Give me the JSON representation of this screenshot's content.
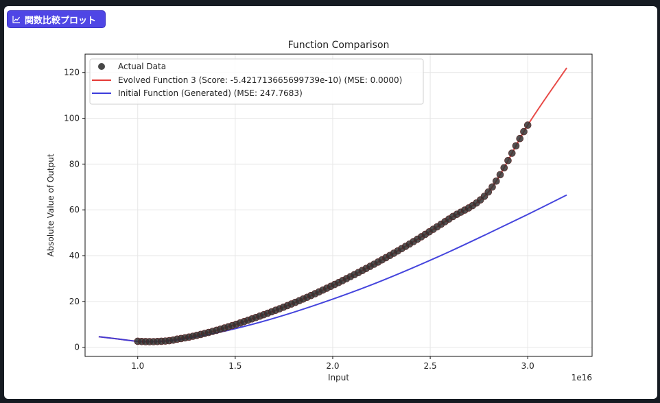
{
  "badge": {
    "label": "関数比較プロット",
    "icon": "chart-line-icon",
    "color": "#4f46e5"
  },
  "chart_data": {
    "type": "line",
    "title": "Function Comparison",
    "xlabel": "Input",
    "ylabel": "Absolute Value of Output",
    "x_offset_label": "1e16",
    "xlim": [
      0.73,
      3.33
    ],
    "ylim": [
      -4,
      128
    ],
    "xticks": [
      1.0,
      1.5,
      2.0,
      2.5,
      3.0
    ],
    "xtick_labels": [
      "1.0",
      "1.5",
      "2.0",
      "2.5",
      "3.0"
    ],
    "yticks": [
      0,
      20,
      40,
      60,
      80,
      100,
      120
    ],
    "ytick_labels": [
      "0",
      "20",
      "40",
      "60",
      "80",
      "100",
      "120"
    ],
    "grid": true,
    "legend_position": "top-left",
    "series": [
      {
        "name": "Actual Data",
        "kind": "scatter",
        "color": "#333333",
        "x_range": [
          1.0,
          3.0
        ],
        "n_points": 100,
        "formula": "y = 2.5*(x-1)^2 + 38*(x-1)^1.5 + 2.5 (approx. read from plot)"
      },
      {
        "name": "Evolved Function 3 (Score: -5.421713665699739e-10) (MSE: 0.0000)",
        "kind": "line",
        "color": "#e53935",
        "x": [
          0.8,
          0.9,
          1.0,
          1.1,
          1.2,
          1.4,
          1.6,
          1.8,
          2.0,
          2.2,
          2.4,
          2.6,
          2.8,
          3.0,
          3.2
        ],
        "y": [
          4.6,
          3.6,
          2.6,
          2.5,
          3.5,
          7.3,
          12.8,
          19.3,
          27.0,
          35.7,
          45.4,
          56.2,
          68.0,
          97.0,
          122.0
        ]
      },
      {
        "name": "Initial Function (Generated) (MSE: 247.7683)",
        "kind": "line",
        "color": "#3b3bdb",
        "x": [
          0.8,
          0.9,
          1.0,
          1.1,
          1.2,
          1.4,
          1.6,
          1.8,
          2.0,
          2.2,
          2.4,
          2.6,
          2.8,
          3.0,
          3.2
        ],
        "y": [
          4.6,
          3.6,
          2.6,
          2.5,
          3.2,
          6.2,
          10.3,
          15.3,
          21.0,
          27.3,
          34.3,
          41.8,
          49.8,
          58.0,
          66.5
        ]
      }
    ]
  }
}
